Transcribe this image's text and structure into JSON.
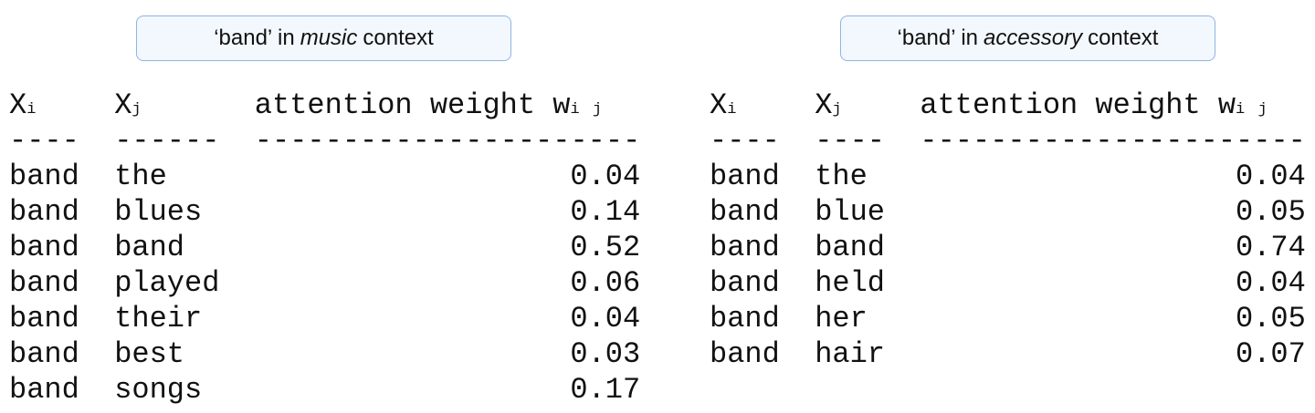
{
  "panels": [
    {
      "title_pre": "‘band’ in",
      "title_em": "music",
      "title_post": "context",
      "headers": {
        "xi": "X",
        "xi_sub": "i",
        "xj": "X",
        "xj_sub": "j",
        "weight": "attention weight w",
        "weight_sub": "i j"
      },
      "dashes": [
        "----",
        "------",
        "----------------------"
      ],
      "rows": [
        [
          "band",
          "the",
          "0.04"
        ],
        [
          "band",
          "blues",
          "0.14"
        ],
        [
          "band",
          "band",
          "0.52"
        ],
        [
          "band",
          "played",
          "0.06"
        ],
        [
          "band",
          "their",
          "0.04"
        ],
        [
          "band",
          "best",
          "0.03"
        ],
        [
          "band",
          "songs",
          "0.17"
        ]
      ]
    },
    {
      "title_pre": "‘band’ in",
      "title_em": "accessory",
      "title_post": "context",
      "headers": {
        "xi": "X",
        "xi_sub": "i",
        "xj": "X",
        "xj_sub": "j",
        "weight": "attention weight w",
        "weight_sub": "i j"
      },
      "dashes": [
        "----",
        "----",
        "----------------------"
      ],
      "rows": [
        [
          "band",
          "the",
          "0.04"
        ],
        [
          "band",
          "blue",
          "0.05"
        ],
        [
          "band",
          "band",
          "0.74"
        ],
        [
          "band",
          "held",
          "0.04"
        ],
        [
          "band",
          "her",
          "0.05"
        ],
        [
          "band",
          "hair",
          "0.07"
        ]
      ]
    }
  ]
}
